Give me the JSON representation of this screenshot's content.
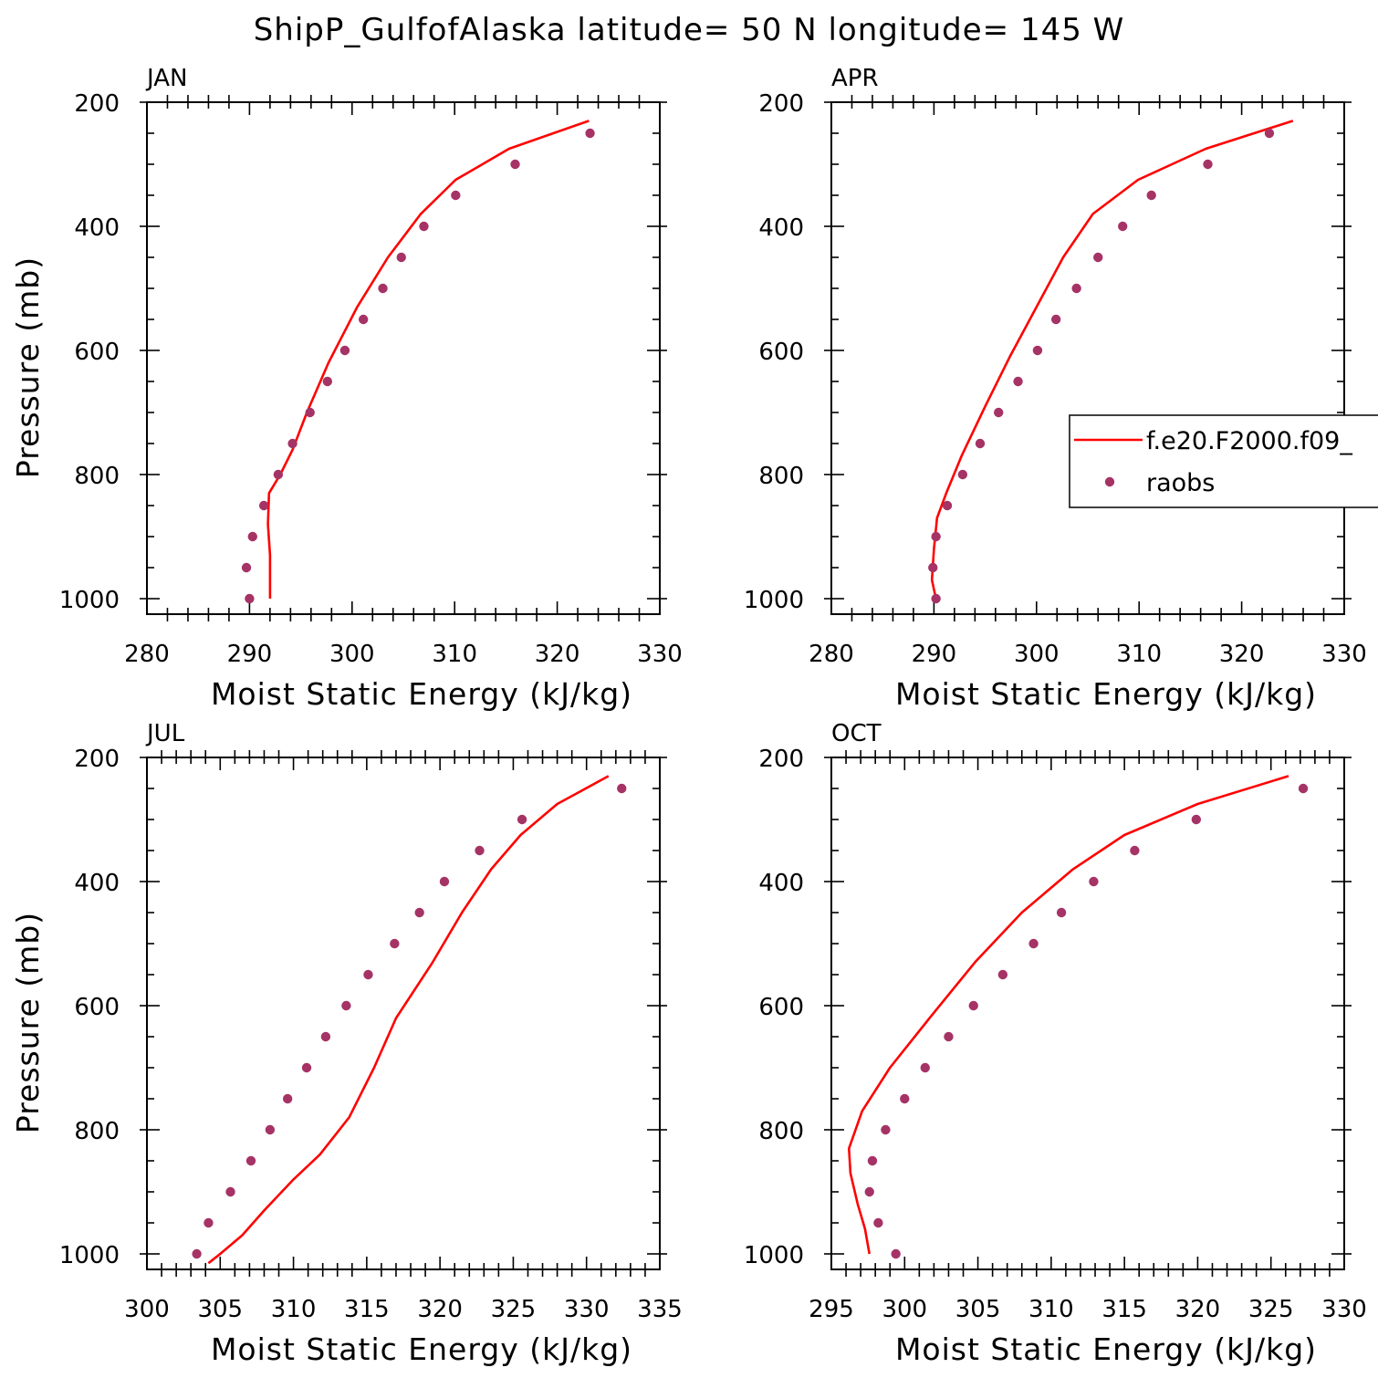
{
  "figure_title": "ShipP_GulfofAlaska  latitude= 50 N longitude= 145 W",
  "colors": {
    "model": "#ff0000",
    "obs": "#a63366"
  },
  "legend": {
    "model_label": "f.e20.F2000.f09_",
    "obs_label": "raobs"
  },
  "chart_data": [
    {
      "type": "line",
      "panel": "JAN",
      "xlabel": "Moist Static Energy (kJ/kg)",
      "ylabel": "Pressure (mb)",
      "xlim": [
        280,
        330
      ],
      "ylim": [
        1000,
        200
      ],
      "xticks": [
        280,
        290,
        300,
        310,
        320,
        330
      ],
      "yticks": [
        200,
        400,
        600,
        800,
        1000
      ],
      "series": [
        {
          "name": "f.e20.F2000.f09_",
          "points": [
            [
              323.1,
              230
            ],
            [
              315.3,
              275
            ],
            [
              310.1,
              325
            ],
            [
              306.7,
              380
            ],
            [
              303.5,
              450
            ],
            [
              300.5,
              530
            ],
            [
              297.7,
              620
            ],
            [
              295.6,
              700
            ],
            [
              294.2,
              760
            ],
            [
              293.0,
              800
            ],
            [
              291.9,
              830
            ],
            [
              291.8,
              880
            ],
            [
              292.0,
              930
            ],
            [
              292.0,
              980
            ],
            [
              292.0,
              1000
            ]
          ]
        },
        {
          "name": "raobs",
          "points": [
            [
              323.2,
              250
            ],
            [
              315.9,
              300
            ],
            [
              310.1,
              350
            ],
            [
              307.0,
              400
            ],
            [
              304.8,
              450
            ],
            [
              303.0,
              500
            ],
            [
              301.1,
              550
            ],
            [
              299.3,
              600
            ],
            [
              297.6,
              650
            ],
            [
              295.9,
              700
            ],
            [
              294.2,
              750
            ],
            [
              292.8,
              800
            ],
            [
              291.4,
              850
            ],
            [
              290.3,
              900
            ],
            [
              289.7,
              950
            ],
            [
              290.0,
              1000
            ]
          ]
        }
      ]
    },
    {
      "type": "line",
      "panel": "APR",
      "xlabel": "Moist Static Energy (kJ/kg)",
      "ylabel": "",
      "xlim": [
        280,
        330
      ],
      "ylim": [
        1000,
        200
      ],
      "xticks": [
        280,
        290,
        300,
        310,
        320,
        330
      ],
      "yticks": [
        200,
        400,
        600,
        800,
        1000
      ],
      "series": [
        {
          "name": "f.e20.F2000.f09_",
          "points": [
            [
              325.0,
              230
            ],
            [
              316.5,
              275
            ],
            [
              309.9,
              325
            ],
            [
              305.5,
              380
            ],
            [
              302.6,
              450
            ],
            [
              300.0,
              530
            ],
            [
              297.4,
              610
            ],
            [
              295.0,
              690
            ],
            [
              292.7,
              770
            ],
            [
              291.2,
              830
            ],
            [
              290.3,
              870
            ],
            [
              290.0,
              920
            ],
            [
              289.8,
              970
            ],
            [
              290.2,
              1000
            ]
          ]
        },
        {
          "name": "raobs",
          "points": [
            [
              322.7,
              250
            ],
            [
              316.7,
              300
            ],
            [
              311.2,
              350
            ],
            [
              308.4,
              400
            ],
            [
              306.0,
              450
            ],
            [
              303.9,
              500
            ],
            [
              301.9,
              550
            ],
            [
              300.1,
              600
            ],
            [
              298.2,
              650
            ],
            [
              296.3,
              700
            ],
            [
              294.5,
              750
            ],
            [
              292.8,
              800
            ],
            [
              291.3,
              850
            ],
            [
              290.2,
              900
            ],
            [
              289.9,
              950
            ],
            [
              290.2,
              1000
            ]
          ]
        }
      ]
    },
    {
      "type": "line",
      "panel": "JUL",
      "xlabel": "Moist Static Energy (kJ/kg)",
      "ylabel": "Pressure (mb)",
      "xlim": [
        300,
        335
      ],
      "ylim": [
        1000,
        200
      ],
      "xticks": [
        300,
        305,
        310,
        315,
        320,
        325,
        330,
        335
      ],
      "yticks": [
        200,
        400,
        600,
        800,
        1000
      ],
      "series": [
        {
          "name": "f.e20.F2000.f09_",
          "points": [
            [
              331.5,
              230
            ],
            [
              328.0,
              275
            ],
            [
              325.5,
              325
            ],
            [
              323.5,
              380
            ],
            [
              321.5,
              450
            ],
            [
              319.5,
              530
            ],
            [
              317.0,
              620
            ],
            [
              315.5,
              700
            ],
            [
              313.8,
              780
            ],
            [
              311.8,
              840
            ],
            [
              310.0,
              880
            ],
            [
              308.0,
              930
            ],
            [
              306.5,
              970
            ],
            [
              305.0,
              1000
            ],
            [
              304.2,
              1015
            ]
          ]
        },
        {
          "name": "raobs",
          "points": [
            [
              332.4,
              250
            ],
            [
              325.6,
              300
            ],
            [
              322.7,
              350
            ],
            [
              320.3,
              400
            ],
            [
              318.6,
              450
            ],
            [
              316.9,
              500
            ],
            [
              315.1,
              550
            ],
            [
              313.6,
              600
            ],
            [
              312.2,
              650
            ],
            [
              310.9,
              700
            ],
            [
              309.6,
              750
            ],
            [
              308.4,
              800
            ],
            [
              307.1,
              850
            ],
            [
              305.7,
              900
            ],
            [
              304.2,
              950
            ],
            [
              303.4,
              1000
            ]
          ]
        }
      ]
    },
    {
      "type": "line",
      "panel": "OCT",
      "xlabel": "Moist Static Energy (kJ/kg)",
      "ylabel": "",
      "xlim": [
        295,
        330
      ],
      "ylim": [
        1000,
        200
      ],
      "xticks": [
        295,
        300,
        305,
        310,
        315,
        320,
        325,
        330
      ],
      "yticks": [
        200,
        400,
        600,
        800,
        1000
      ],
      "series": [
        {
          "name": "f.e20.F2000.f09_",
          "points": [
            [
              326.2,
              230
            ],
            [
              320.0,
              275
            ],
            [
              315.0,
              325
            ],
            [
              311.5,
              380
            ],
            [
              308.0,
              450
            ],
            [
              304.8,
              530
            ],
            [
              301.7,
              620
            ],
            [
              299.0,
              700
            ],
            [
              297.1,
              770
            ],
            [
              296.2,
              830
            ],
            [
              296.3,
              870
            ],
            [
              296.8,
              920
            ],
            [
              297.3,
              960
            ],
            [
              297.6,
              1000
            ]
          ]
        },
        {
          "name": "raobs",
          "points": [
            [
              327.2,
              250
            ],
            [
              319.9,
              300
            ],
            [
              315.7,
              350
            ],
            [
              312.9,
              400
            ],
            [
              310.7,
              450
            ],
            [
              308.8,
              500
            ],
            [
              306.7,
              550
            ],
            [
              304.7,
              600
            ],
            [
              303.0,
              650
            ],
            [
              301.4,
              700
            ],
            [
              300.0,
              750
            ],
            [
              298.7,
              800
            ],
            [
              297.8,
              850
            ],
            [
              297.6,
              900
            ],
            [
              298.2,
              950
            ],
            [
              299.4,
              1000
            ]
          ]
        }
      ]
    }
  ]
}
